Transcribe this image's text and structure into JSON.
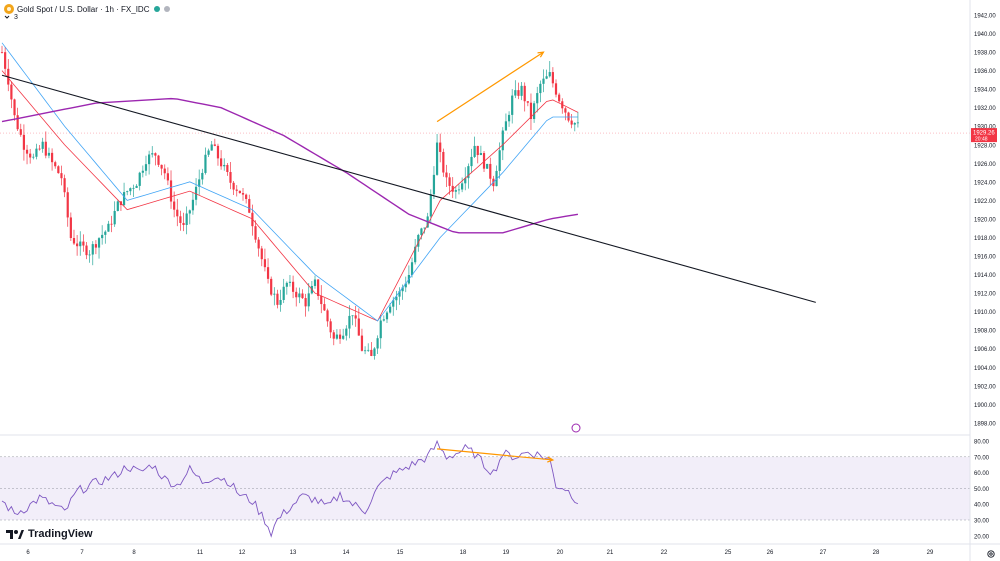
{
  "header": {
    "symbol_title": "Gold Spot / U.S. Dollar · 1h · FX_IDC",
    "interval_count": "3",
    "status_colors": [
      "#26a69a",
      "#b2b5be"
    ]
  },
  "price_tag": {
    "price": "1929.26",
    "countdown": "20:48",
    "color": "#f23645"
  },
  "logo_text": "TradingView",
  "colors": {
    "up": "#26a69a",
    "down": "#f23645",
    "ema_fast": "#f23645",
    "ema_slow": "#42a5f5",
    "ma_long": "#9c27b0",
    "trendline": "#131722",
    "divergence": "#ff9800",
    "rsi": "#7e57c2",
    "rsi_band": "#ede7f6"
  },
  "chart_data": [
    {
      "type": "candlestick",
      "title": "Gold Spot / U.S. Dollar · 1h · FX_IDC",
      "x_tick_labels": [
        "6",
        "7",
        "8",
        "11",
        "12",
        "13",
        "14",
        "15",
        "18",
        "19",
        "20",
        "21",
        "22",
        "25",
        "26",
        "27",
        "28",
        "29"
      ],
      "y_tick_labels": [
        "1942.00",
        "1940.00",
        "1938.00",
        "1936.00",
        "1934.00",
        "1932.00",
        "1930.00",
        "1928.00",
        "1926.00",
        "1924.00",
        "1922.00",
        "1920.00",
        "1918.00",
        "1916.00",
        "1914.00",
        "1912.00",
        "1910.00",
        "1908.00",
        "1906.00",
        "1904.00",
        "1902.00",
        "1900.00",
        "1898.00"
      ],
      "ylim": [
        1897,
        1943
      ],
      "last_price": 1929.26,
      "price_path": [
        [
          0,
          1938
        ],
        [
          2,
          1935
        ],
        [
          4,
          1931
        ],
        [
          7,
          1928
        ],
        [
          10,
          1926.5
        ],
        [
          13,
          1928
        ],
        [
          16,
          1926
        ],
        [
          19,
          1924.5
        ],
        [
          22,
          1918
        ],
        [
          25,
          1917
        ],
        [
          28,
          1916.5
        ],
        [
          31,
          1918
        ],
        [
          34,
          1919
        ],
        [
          37,
          1921.5
        ],
        [
          40,
          1923
        ],
        [
          43,
          1924
        ],
        [
          46,
          1926.5
        ],
        [
          49,
          1927
        ],
        [
          52,
          1925
        ],
        [
          55,
          1921
        ],
        [
          58,
          1919
        ],
        [
          61,
          1922
        ],
        [
          64,
          1925.5
        ],
        [
          67,
          1928
        ],
        [
          70,
          1926
        ],
        [
          73,
          1924
        ],
        [
          76,
          1923
        ],
        [
          79,
          1921
        ],
        [
          82,
          1917
        ],
        [
          85,
          1913
        ],
        [
          88,
          1911
        ],
        [
          91,
          1913
        ],
        [
          94,
          1912
        ],
        [
          97,
          1911
        ],
        [
          100,
          1913
        ],
        [
          103,
          1910
        ],
        [
          106,
          1907
        ],
        [
          109,
          1908
        ],
        [
          112,
          1910
        ],
        [
          115,
          1906
        ],
        [
          118,
          1905
        ],
        [
          121,
          1909
        ],
        [
          124,
          1911
        ],
        [
          127,
          1912
        ],
        [
          130,
          1914
        ],
        [
          133,
          1918
        ],
        [
          136,
          1920
        ],
        [
          139,
          1928
        ],
        [
          142,
          1924
        ],
        [
          145,
          1923
        ],
        [
          148,
          1925
        ],
        [
          151,
          1928
        ],
        [
          154,
          1926
        ],
        [
          157,
          1924
        ],
        [
          160,
          1929
        ],
        [
          163,
          1933
        ],
        [
          166,
          1934
        ],
        [
          169,
          1931
        ],
        [
          172,
          1934.5
        ],
        [
          175,
          1935.5
        ],
        [
          178,
          1933
        ],
        [
          181,
          1931
        ],
        [
          184,
          1930
        ]
      ],
      "series": [
        {
          "name": "",
          "kind": "ema_fast",
          "values": [
            [
              0,
              1936
            ],
            [
              20,
              1928
            ],
            [
              40,
              1921
            ],
            [
              60,
              1923
            ],
            [
              80,
              1920
            ],
            [
              100,
              1912
            ],
            [
              120,
              1909
            ],
            [
              140,
              1922
            ],
            [
              160,
              1928
            ],
            [
              175,
              1933
            ],
            [
              184,
              1931.5
            ]
          ]
        },
        {
          "name": "",
          "kind": "ema_slow",
          "values": [
            [
              0,
              1939
            ],
            [
              20,
              1930
            ],
            [
              40,
              1922
            ],
            [
              60,
              1924
            ],
            [
              80,
              1921
            ],
            [
              100,
              1914
            ],
            [
              120,
              1909
            ],
            [
              140,
              1918
            ],
            [
              160,
              1925
            ],
            [
              175,
              1931
            ],
            [
              184,
              1931
            ]
          ]
        },
        {
          "name": "",
          "kind": "ma_long",
          "values": [
            [
              0,
              1930.5
            ],
            [
              30,
              1932.5
            ],
            [
              55,
              1933
            ],
            [
              70,
              1932
            ],
            [
              90,
              1929
            ],
            [
              110,
              1925
            ],
            [
              130,
              1920.5
            ],
            [
              145,
              1918.5
            ],
            [
              160,
              1918.5
            ],
            [
              175,
              1920
            ],
            [
              184,
              1920.5
            ]
          ]
        }
      ],
      "trendline": [
        [
          0,
          1935.5
        ],
        [
          260,
          1911
        ]
      ],
      "divergence_arrow": [
        [
          139,
          1930.5
        ],
        [
          173,
          1938
        ]
      ]
    },
    {
      "type": "line",
      "y_tick_labels": [
        "80.00",
        "70.00",
        "60.00",
        "50.00",
        "40.00",
        "30.00",
        "20.00"
      ],
      "ylim": [
        16,
        84
      ],
      "band": [
        30,
        70
      ],
      "midline": 50,
      "values": [
        [
          0,
          42
        ],
        [
          4,
          34
        ],
        [
          8,
          38
        ],
        [
          12,
          44
        ],
        [
          16,
          40
        ],
        [
          20,
          35
        ],
        [
          24,
          48
        ],
        [
          28,
          52
        ],
        [
          32,
          55
        ],
        [
          36,
          58
        ],
        [
          40,
          64
        ],
        [
          44,
          60
        ],
        [
          48,
          65
        ],
        [
          52,
          56
        ],
        [
          56,
          52
        ],
        [
          60,
          62
        ],
        [
          64,
          54
        ],
        [
          68,
          58
        ],
        [
          72,
          55
        ],
        [
          76,
          46
        ],
        [
          80,
          42
        ],
        [
          84,
          30
        ],
        [
          86,
          22
        ],
        [
          88,
          30
        ],
        [
          92,
          38
        ],
        [
          96,
          45
        ],
        [
          100,
          43
        ],
        [
          104,
          38
        ],
        [
          108,
          46
        ],
        [
          112,
          40
        ],
        [
          116,
          36
        ],
        [
          120,
          50
        ],
        [
          124,
          58
        ],
        [
          128,
          62
        ],
        [
          132,
          66
        ],
        [
          136,
          70
        ],
        [
          139,
          78
        ],
        [
          142,
          70
        ],
        [
          145,
          72
        ],
        [
          148,
          75
        ],
        [
          151,
          72
        ],
        [
          154,
          65
        ],
        [
          157,
          60
        ],
        [
          160,
          72
        ],
        [
          164,
          70
        ],
        [
          168,
          73
        ],
        [
          172,
          71
        ],
        [
          175,
          68
        ],
        [
          177,
          52
        ],
        [
          180,
          50
        ],
        [
          184,
          42
        ]
      ],
      "divergence_arrow": [
        [
          139,
          75
        ],
        [
          176,
          68
        ]
      ]
    }
  ]
}
